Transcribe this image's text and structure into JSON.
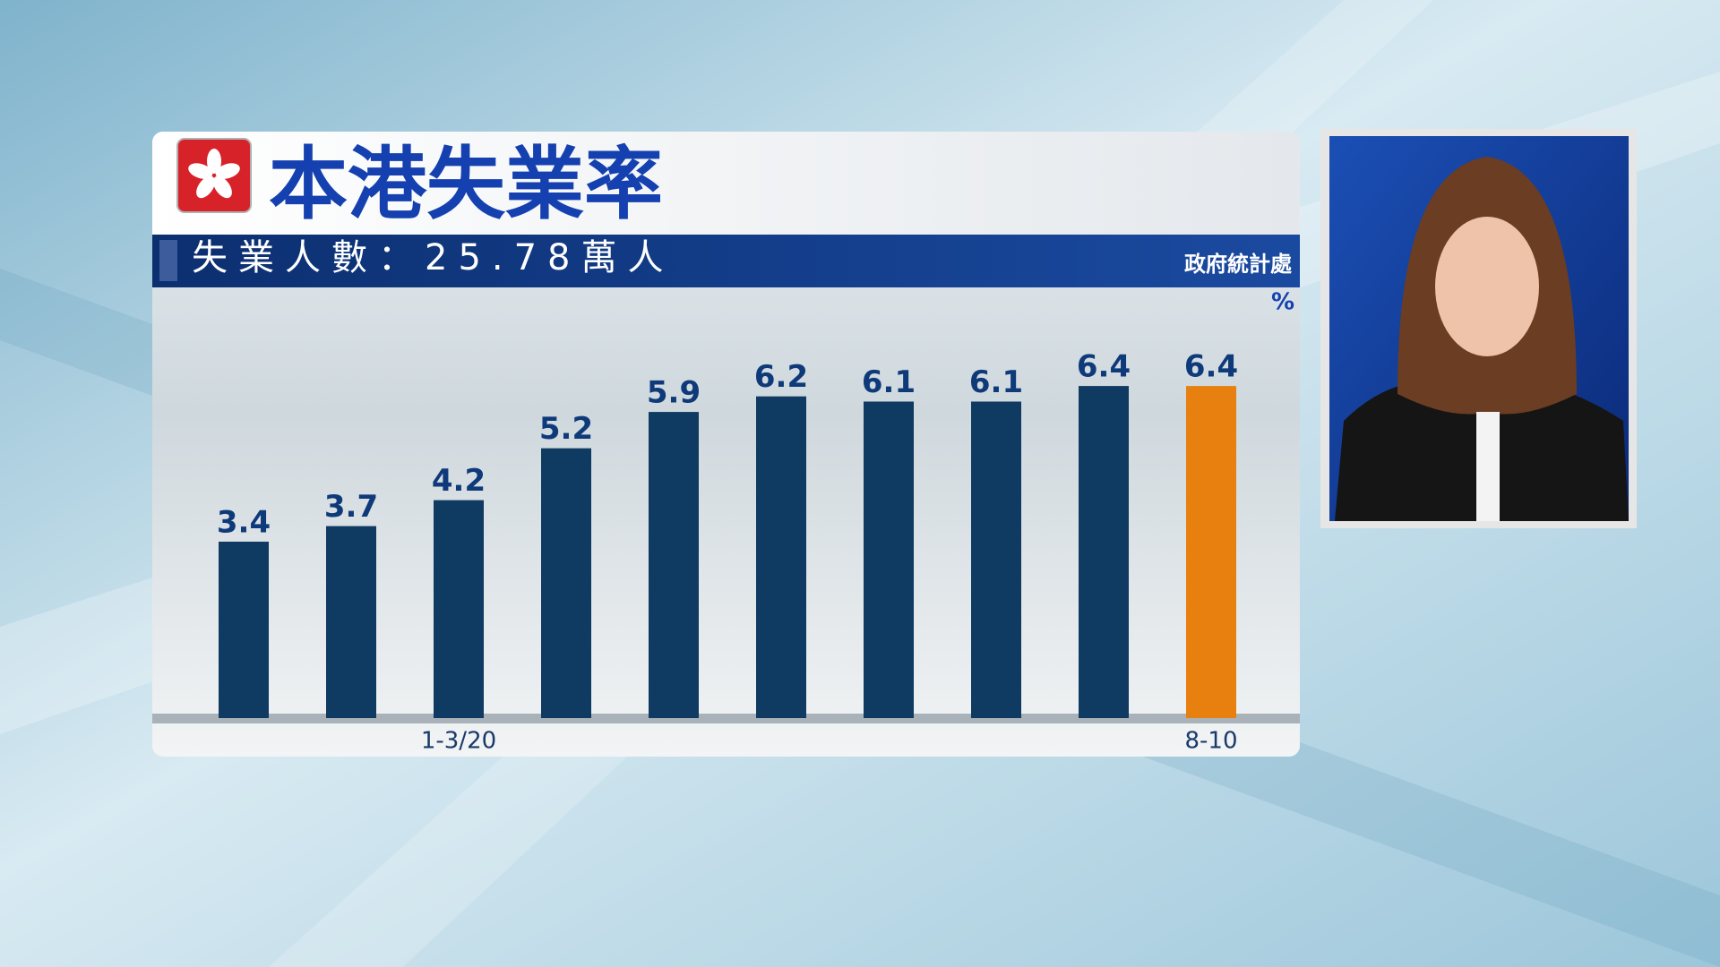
{
  "chart_data": {
    "type": "bar",
    "title": "本港失業率",
    "subtitle": "失業人數：25.78萬人",
    "source": "政府統計處",
    "unit": "%",
    "categories": [
      null,
      null,
      "1-3/20",
      null,
      null,
      null,
      null,
      null,
      null,
      "8-10"
    ],
    "values": [
      3.4,
      3.7,
      4.2,
      5.2,
      5.9,
      6.2,
      6.1,
      6.1,
      6.4,
      6.4
    ],
    "colors": [
      "#0f3a62",
      "#0f3a62",
      "#0f3a62",
      "#0f3a62",
      "#0f3a62",
      "#0f3a62",
      "#0f3a62",
      "#0f3a62",
      "#0f3a62",
      "#e8800f"
    ],
    "ylim": [
      0,
      8.3
    ]
  }
}
